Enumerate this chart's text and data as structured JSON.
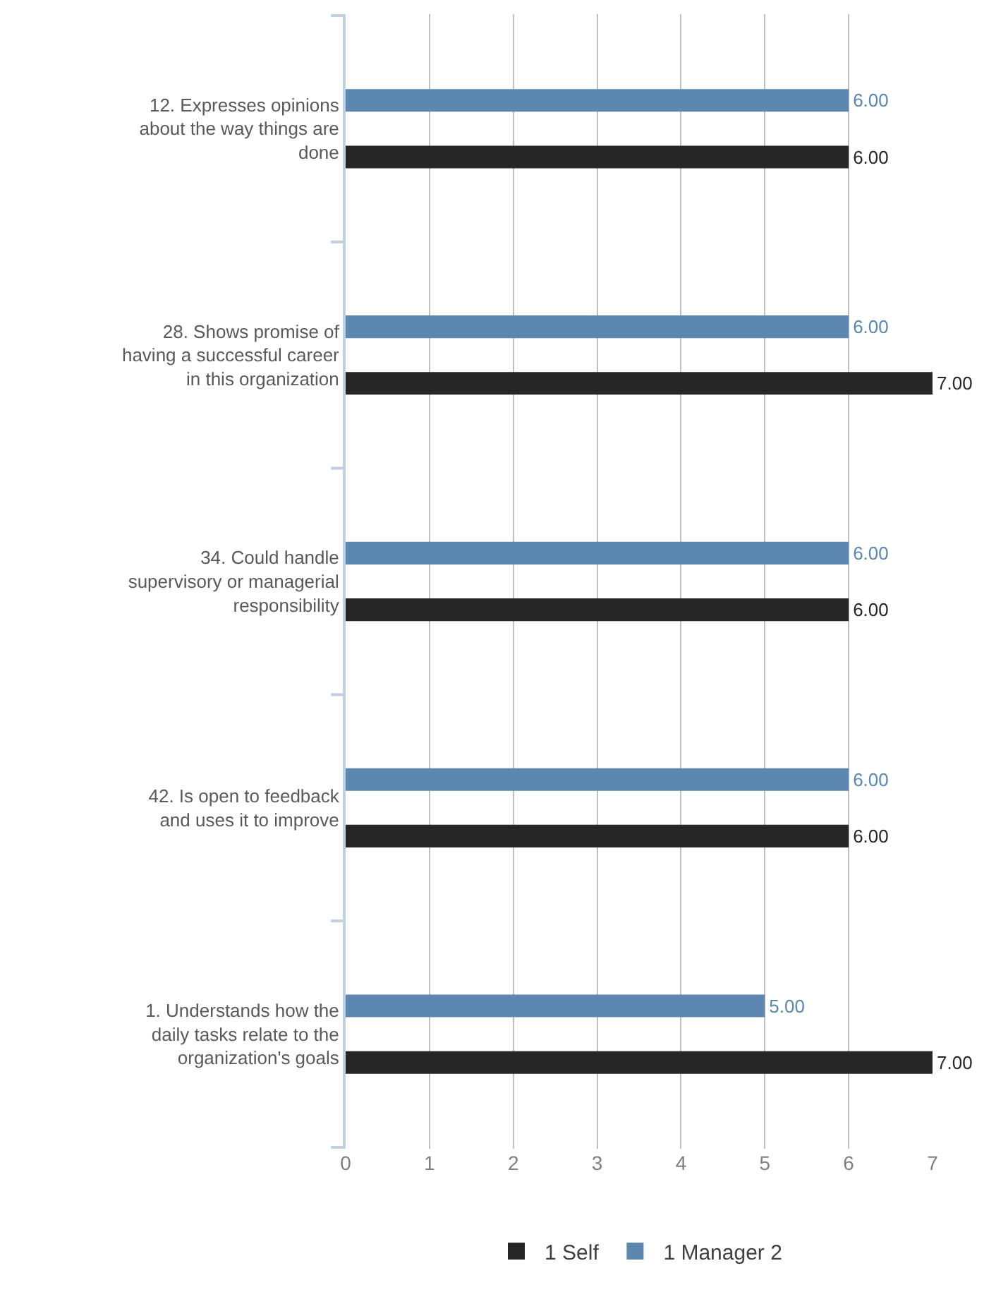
{
  "chart_data": {
    "type": "bar",
    "orientation": "horizontal",
    "categories": [
      "12. Expresses opinions about the way things are done",
      "28. Shows promise of having a successful career in this organization",
      "34. Could handle supervisory or managerial responsibility",
      "42. Is open to feedback and uses it to improve",
      "1. Understands how the daily tasks relate to the organization's goals"
    ],
    "series": [
      {
        "name": "1 Manager 2",
        "color": "#5b87b0",
        "values": [
          6,
          6,
          6,
          6,
          5
        ],
        "value_labels": [
          "6.00",
          "6.00",
          "6.00",
          "6.00",
          "5.00"
        ]
      },
      {
        "name": "1 Self",
        "color": "#262626",
        "values": [
          6,
          7,
          6,
          6,
          7
        ],
        "value_labels": [
          "6.00",
          "7.00",
          "6.00",
          "6.00",
          "7.00"
        ]
      }
    ],
    "xlim": [
      0,
      7
    ],
    "xticks": [
      0,
      1,
      2,
      3,
      4,
      5,
      6,
      7
    ],
    "grid": "x",
    "legend": "bottom"
  }
}
